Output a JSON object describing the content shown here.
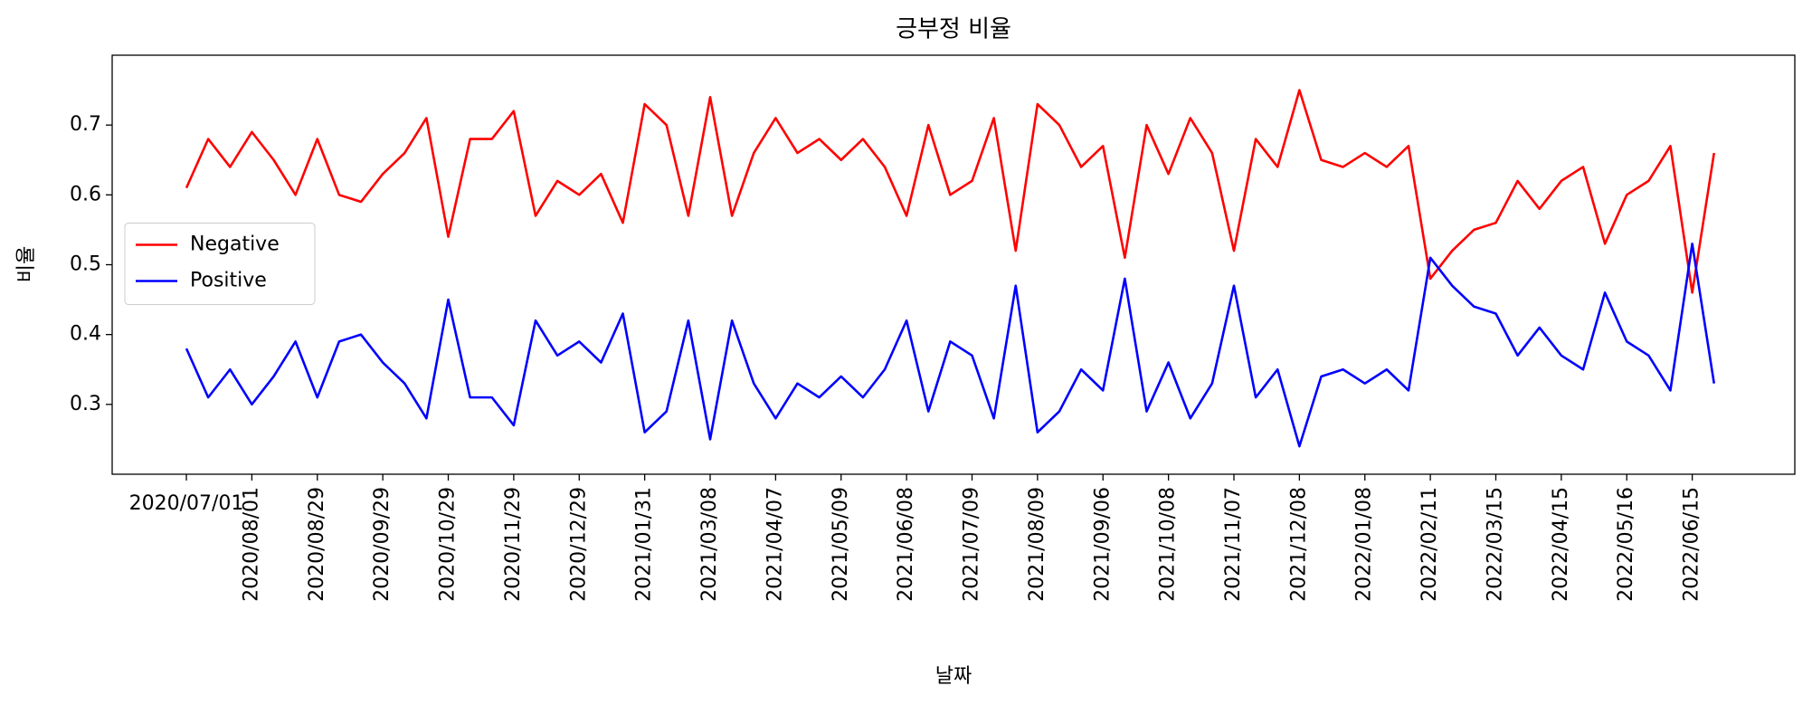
{
  "chart_data": {
    "type": "line",
    "title": "긍부정 비율",
    "x_label": "날짜",
    "y_label": "비율",
    "x": [
      0,
      10,
      20,
      30,
      40,
      50,
      60,
      70,
      80,
      90,
      100,
      110,
      120,
      130,
      140,
      150,
      160,
      170,
      180,
      190,
      200,
      210,
      220,
      230,
      240,
      250,
      260,
      270,
      280,
      290,
      300,
      310,
      320,
      330,
      340,
      350,
      360,
      370,
      380,
      390,
      400,
      410,
      420,
      430,
      440,
      450,
      460,
      470,
      480,
      490,
      500,
      510,
      520,
      530,
      540,
      550,
      560,
      570,
      580,
      590,
      600,
      610,
      620,
      630,
      640,
      650,
      660,
      670,
      680,
      690,
      700
    ],
    "series": [
      {
        "name": "Negative",
        "color": "#ff0000",
        "values": [
          0.61,
          0.68,
          0.64,
          0.69,
          0.65,
          0.6,
          0.68,
          0.6,
          0.59,
          0.63,
          0.66,
          0.71,
          0.54,
          0.68,
          0.68,
          0.72,
          0.57,
          0.62,
          0.6,
          0.63,
          0.56,
          0.73,
          0.7,
          0.57,
          0.74,
          0.57,
          0.66,
          0.71,
          0.66,
          0.68,
          0.65,
          0.68,
          0.64,
          0.57,
          0.7,
          0.6,
          0.62,
          0.71,
          0.52,
          0.73,
          0.7,
          0.64,
          0.67,
          0.51,
          0.7,
          0.63,
          0.71,
          0.66,
          0.52,
          0.68,
          0.64,
          0.75,
          0.65,
          0.64,
          0.66,
          0.64,
          0.67,
          0.48,
          0.52,
          0.55,
          0.56,
          0.62,
          0.58,
          0.62,
          0.64,
          0.53,
          0.6,
          0.62,
          0.67,
          0.46,
          0.66
        ]
      },
      {
        "name": "Positive",
        "color": "#0000ff",
        "values": [
          0.38,
          0.31,
          0.35,
          0.3,
          0.34,
          0.39,
          0.31,
          0.39,
          0.4,
          0.36,
          0.33,
          0.28,
          0.45,
          0.31,
          0.31,
          0.27,
          0.42,
          0.37,
          0.39,
          0.36,
          0.43,
          0.26,
          0.29,
          0.42,
          0.25,
          0.42,
          0.33,
          0.28,
          0.33,
          0.31,
          0.34,
          0.31,
          0.35,
          0.42,
          0.29,
          0.39,
          0.37,
          0.28,
          0.47,
          0.26,
          0.29,
          0.35,
          0.32,
          0.48,
          0.29,
          0.36,
          0.28,
          0.33,
          0.47,
          0.31,
          0.35,
          0.24,
          0.34,
          0.35,
          0.33,
          0.35,
          0.32,
          0.51,
          0.47,
          0.44,
          0.43,
          0.37,
          0.41,
          0.37,
          0.35,
          0.46,
          0.39,
          0.37,
          0.32,
          0.53,
          0.33
        ]
      }
    ],
    "xlim": [
      -34,
      737
    ],
    "ylim": [
      0.2,
      0.8
    ],
    "xticks": [
      {
        "value": 0,
        "label": "2020/07/01"
      },
      {
        "value": 30,
        "label": "2020/08/01"
      },
      {
        "value": 60,
        "label": "2020/08/29"
      },
      {
        "value": 90,
        "label": "2020/09/29"
      },
      {
        "value": 120,
        "label": "2020/10/29"
      },
      {
        "value": 150,
        "label": "2020/11/29"
      },
      {
        "value": 180,
        "label": "2020/12/29"
      },
      {
        "value": 210,
        "label": "2021/01/31"
      },
      {
        "value": 240,
        "label": "2021/03/08"
      },
      {
        "value": 270,
        "label": "2021/04/07"
      },
      {
        "value": 300,
        "label": "2021/05/09"
      },
      {
        "value": 330,
        "label": "2021/06/08"
      },
      {
        "value": 360,
        "label": "2021/07/09"
      },
      {
        "value": 390,
        "label": "2021/08/09"
      },
      {
        "value": 420,
        "label": "2021/09/06"
      },
      {
        "value": 450,
        "label": "2021/10/08"
      },
      {
        "value": 480,
        "label": "2021/11/07"
      },
      {
        "value": 510,
        "label": "2021/12/08"
      },
      {
        "value": 540,
        "label": "2022/01/08"
      },
      {
        "value": 570,
        "label": "2022/02/11"
      },
      {
        "value": 600,
        "label": "2022/03/15"
      },
      {
        "value": 630,
        "label": "2022/04/15"
      },
      {
        "value": 660,
        "label": "2022/05/16"
      },
      {
        "value": 690,
        "label": "2022/06/15"
      }
    ],
    "yticks": [
      0.3,
      0.4,
      0.5,
      0.6,
      0.7
    ],
    "legend": "center left",
    "grid": false
  }
}
